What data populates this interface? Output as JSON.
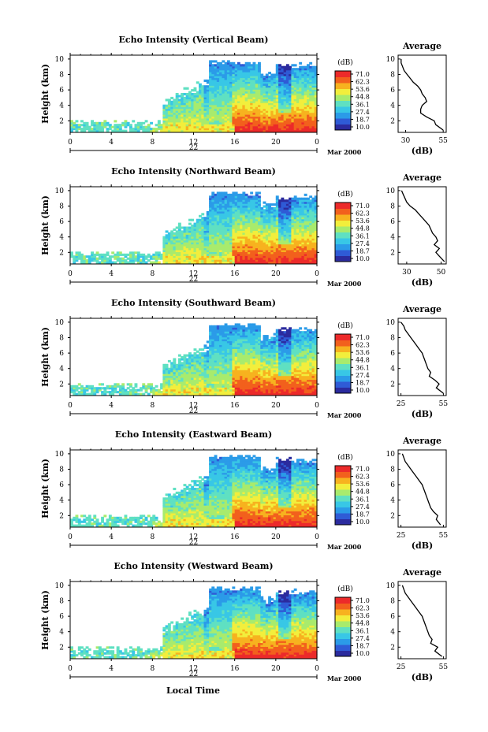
{
  "shared": {
    "xlabel": "Local Time",
    "date_label": "Mar 2000",
    "day_label": "22",
    "avg_title": "Average",
    "avg_xlabel": "(dB)",
    "colorbar_unit": "(dB)",
    "ylabel": "Height (km)"
  },
  "colors": {
    "colormap": [
      "#2b2b9e",
      "#2f5bd6",
      "#2b9be8",
      "#38c7e6",
      "#5fe0c2",
      "#a8eb6d",
      "#f2ee3c",
      "#f7b21f",
      "#f2601d",
      "#ec2a2a"
    ],
    "panel_bg": "#ffffff",
    "axis": "#000000"
  },
  "chart_data": [
    {
      "type": "heatmap",
      "title": "Echo Intensity (Vertical Beam)",
      "ylabel": "Height (km)",
      "x_ticks": [
        "0",
        "4",
        "8",
        "12",
        "16",
        "20",
        "0"
      ],
      "y_ticks": [
        "2",
        "4",
        "6",
        "8",
        "10"
      ],
      "xlim": [
        0,
        24
      ],
      "ylim": [
        0.5,
        10.5
      ],
      "colorbar": {
        "unit": "(dB)",
        "labels": [
          "71.0",
          "62.3",
          "53.6",
          "44.8",
          "36.1",
          "27.4",
          "18.7",
          "10.0"
        ],
        "range": [
          10.0,
          71.0
        ]
      },
      "profile": {
        "title": "Average",
        "xlabel": "(dB)",
        "x_ticks": [
          "30",
          "55"
        ],
        "xlim": [
          25,
          57
        ],
        "y_ticks": [
          "2",
          "4",
          "6",
          "8",
          "10"
        ],
        "height_km": [
          0.8,
          1.5,
          2.0,
          2.5,
          3.0,
          3.5,
          4.0,
          4.5,
          5.0,
          5.5,
          6.0,
          6.5,
          7.0,
          7.5,
          8.0,
          8.5,
          9.0,
          9.5,
          10.0
        ],
        "value_db": [
          55,
          50,
          49,
          44,
          40,
          40,
          41,
          44,
          43,
          41,
          40,
          38,
          35,
          33,
          31,
          29,
          28,
          27,
          27
        ]
      }
    },
    {
      "type": "heatmap",
      "title": "Echo Intensity (Northward Beam)",
      "ylabel": "Height (km)",
      "x_ticks": [
        "0",
        "4",
        "8",
        "12",
        "16",
        "20",
        "0"
      ],
      "y_ticks": [
        "2",
        "4",
        "6",
        "8",
        "10"
      ],
      "xlim": [
        0,
        24
      ],
      "ylim": [
        0.5,
        10.5
      ],
      "colorbar": {
        "unit": "(dB)",
        "labels": [
          "71.0",
          "62.3",
          "53.6",
          "44.8",
          "36.1",
          "27.4",
          "18.7",
          "10.0"
        ],
        "range": [
          10.0,
          71.0
        ]
      },
      "profile": {
        "title": "Average",
        "xlabel": "(dB)",
        "x_ticks": [
          "30",
          "50"
        ],
        "xlim": [
          25,
          53
        ],
        "y_ticks": [
          "2",
          "4",
          "6",
          "8",
          "10"
        ],
        "height_km": [
          0.8,
          1.5,
          2.0,
          2.5,
          3.0,
          3.5,
          4.0,
          4.5,
          5.0,
          5.5,
          6.0,
          6.5,
          7.0,
          7.5,
          8.0,
          8.5,
          9.0,
          9.5,
          10.0
        ],
        "value_db": [
          52,
          49,
          47,
          49,
          46,
          48,
          47,
          45,
          44,
          43,
          41,
          39,
          37,
          35,
          32,
          30,
          29,
          28,
          27
        ]
      }
    },
    {
      "type": "heatmap",
      "title": "Echo Intensity (Southward Beam)",
      "ylabel": "Height (km)",
      "x_ticks": [
        "0",
        "4",
        "8",
        "12",
        "16",
        "20",
        "0"
      ],
      "y_ticks": [
        "2",
        "4",
        "6",
        "8",
        "10"
      ],
      "xlim": [
        0,
        24
      ],
      "ylim": [
        0.5,
        10.5
      ],
      "colorbar": {
        "unit": "(dB)",
        "labels": [
          "71.0",
          "62.3",
          "53.6",
          "44.8",
          "36.1",
          "27.4",
          "18.7",
          "10.0"
        ],
        "range": [
          10.0,
          71.0
        ]
      },
      "profile": {
        "title": "Average",
        "xlabel": "(dB)",
        "x_ticks": [
          "25",
          "55"
        ],
        "xlim": [
          23,
          57
        ],
        "y_ticks": [
          "2",
          "4",
          "6",
          "8",
          "10"
        ],
        "height_km": [
          0.8,
          1.5,
          2.0,
          2.5,
          3.0,
          3.5,
          4.0,
          4.5,
          5.0,
          5.5,
          6.0,
          6.5,
          7.0,
          7.5,
          8.0,
          8.5,
          9.0,
          9.5,
          10.0
        ],
        "value_db": [
          55,
          50,
          52,
          49,
          45,
          46,
          44,
          43,
          42,
          41,
          40,
          38,
          36,
          34,
          32,
          30,
          28,
          27,
          25
        ]
      }
    },
    {
      "type": "heatmap",
      "title": "Echo Intensity (Eastward Beam)",
      "ylabel": "Height (km)",
      "x_ticks": [
        "0",
        "4",
        "8",
        "12",
        "16",
        "20",
        "0"
      ],
      "y_ticks": [
        "2",
        "4",
        "6",
        "8",
        "10"
      ],
      "xlim": [
        0,
        24
      ],
      "ylim": [
        0.5,
        10.5
      ],
      "colorbar": {
        "unit": "(dB)",
        "labels": [
          "71.0",
          "62.3",
          "53.6",
          "44.8",
          "36.1",
          "27.4",
          "18.7",
          "10.0"
        ],
        "range": [
          10.0,
          71.0
        ]
      },
      "profile": {
        "title": "Average",
        "xlabel": "(dB)",
        "x_ticks": [
          "25",
          "55"
        ],
        "xlim": [
          23,
          57
        ],
        "y_ticks": [
          "2",
          "4",
          "6",
          "8",
          "10"
        ],
        "height_km": [
          0.8,
          1.5,
          2.0,
          2.5,
          3.0,
          3.5,
          4.0,
          4.5,
          5.0,
          5.5,
          6.0,
          6.5,
          7.0,
          7.5,
          8.0,
          8.5,
          9.0,
          9.5,
          10.0
        ],
        "value_db": [
          53,
          50,
          51,
          48,
          46,
          45,
          44,
          43,
          42,
          41,
          40,
          38,
          36,
          34,
          32,
          30,
          28,
          27,
          26
        ]
      }
    },
    {
      "type": "heatmap",
      "title": "Echo Intensity (Westward Beam)",
      "ylabel": "Height (km)",
      "x_ticks": [
        "0",
        "4",
        "8",
        "12",
        "16",
        "20",
        "0"
      ],
      "y_ticks": [
        "2",
        "4",
        "6",
        "8",
        "10"
      ],
      "xlim": [
        0,
        24
      ],
      "ylim": [
        0.5,
        10.5
      ],
      "colorbar": {
        "unit": "(dB)",
        "labels": [
          "71.0",
          "62.3",
          "53.6",
          "44.8",
          "36.1",
          "27.4",
          "18.7",
          "10.0"
        ],
        "range": [
          10.0,
          71.0
        ]
      },
      "profile": {
        "title": "Average",
        "xlabel": "(dB)",
        "x_ticks": [
          "25",
          "55"
        ],
        "xlim": [
          23,
          57
        ],
        "y_ticks": [
          "2",
          "4",
          "6",
          "8",
          "10"
        ],
        "height_km": [
          0.8,
          1.5,
          2.0,
          2.5,
          3.0,
          3.5,
          4.0,
          4.5,
          5.0,
          5.5,
          6.0,
          6.5,
          7.0,
          7.5,
          8.0,
          8.5,
          9.0,
          9.5,
          10.0
        ],
        "value_db": [
          54,
          49,
          51,
          46,
          47,
          45,
          44,
          43,
          42,
          41,
          40,
          38,
          36,
          34,
          32,
          30,
          28,
          27,
          26
        ]
      }
    }
  ]
}
